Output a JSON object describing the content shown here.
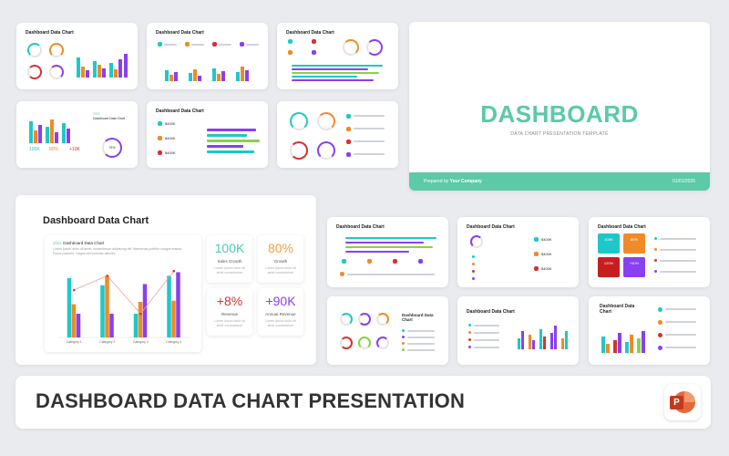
{
  "slide_title": "Dashboard Data Chart",
  "hero": {
    "title": "DASHBOARD",
    "subtitle": "DATA CHART PRESENTATION TEMPLATE",
    "prepared_prefix": "Prepared by",
    "company": "Your Company",
    "date": "01/01/2025"
  },
  "big_card": {
    "title": "Dashboard Data Chart",
    "chart_label_year": "2021",
    "chart_label_text": "Dashboard Data Chart",
    "chart_description": "Lorem ipsum dolor sit amet, consectetuer adipiscing elit. Maecenas porttitor congue massa. Fusce posuere, magna sed pulvinar ultricies",
    "stats": [
      {
        "value": "100K",
        "label": "Sales Growth",
        "desc": "Lorem ipsum dolor sit amet consectetuer",
        "color": "#4ec9b0"
      },
      {
        "value": "80%",
        "label": "Growth",
        "desc": "Lorem ipsum dolor sit amet consectetuer",
        "color": "#f0a040"
      },
      {
        "value": "+8%",
        "label": "Revenue",
        "desc": "Lorem ipsum dolor sit amet consectetuer",
        "color": "#d93030"
      },
      {
        "value": "+90K",
        "label": "Annual Revenue",
        "desc": "Lorem ipsum dolor sit amet consectetuer",
        "color": "#8a3ff0"
      }
    ]
  },
  "chart_data": {
    "type": "bar",
    "categories": [
      "Category 1",
      "Category 2",
      "Category 3",
      "Category 4"
    ],
    "series": [
      {
        "values": [
          5.0,
          4.4,
          2.0,
          5.2
        ]
      },
      {
        "values": [
          2.8,
          5.2,
          3.0,
          3.1
        ]
      },
      {
        "values": [
          2.0,
          2.0,
          4.5,
          5.5
        ]
      }
    ],
    "line": [
      4.0,
      5.2,
      2.0,
      5.6
    ],
    "ylim": [
      0,
      6
    ],
    "colors": [
      "#1ec8c8",
      "#f08a28",
      "#8a3ff0"
    ],
    "line_color": "#f0a0a0"
  },
  "mini_slide_titles": {
    "s6": "Dashboard Data Chart",
    "s7": "Dashboard Data Chart",
    "s8": "Dashboard Data Chart",
    "s9": "Dashboard Data Chart",
    "s12": "Dashboard Data Chart",
    "s13": "Dashboard Data Chart"
  },
  "mini_values": {
    "k100": "100K",
    "p80": "80%",
    "k10": "+10K",
    "pct": "75%",
    "money": "$400K",
    "red_tile": "120%",
    "purple_tile": "+50%",
    "orange_tile": "80%",
    "teal_tile": "100K"
  },
  "banner": {
    "title": "DASHBOARD DATA CHART PRESENTATION",
    "ppt_letter": "P"
  },
  "colors": {
    "teal": "#5cc9a7",
    "cyan": "#1ec8c8",
    "orange": "#f08a28",
    "purple": "#8a3ff0",
    "red": "#d93030",
    "green": "#8ad14a"
  }
}
